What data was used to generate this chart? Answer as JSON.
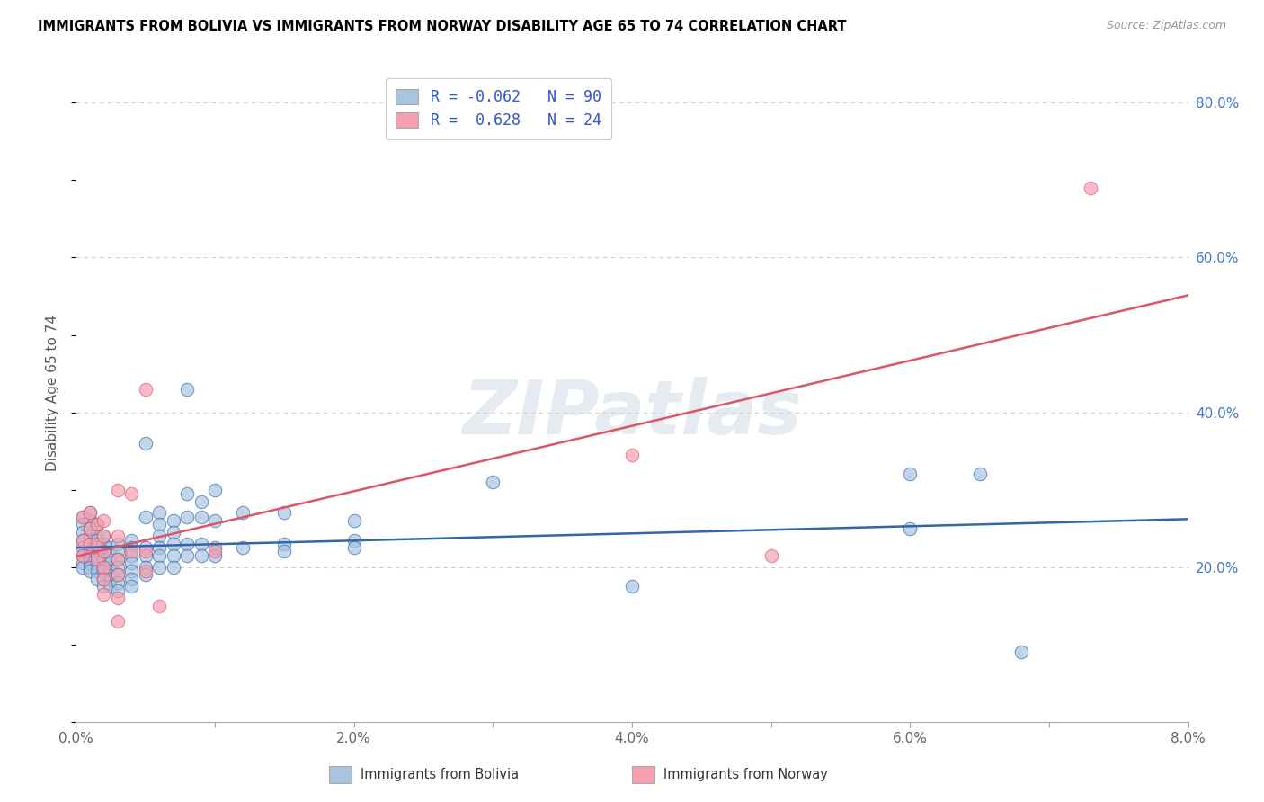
{
  "title": "IMMIGRANTS FROM BOLIVIA VS IMMIGRANTS FROM NORWAY DISABILITY AGE 65 TO 74 CORRELATION CHART",
  "source": "Source: ZipAtlas.com",
  "ylabel": "Disability Age 65 to 74",
  "x_min": 0.0,
  "x_max": 0.08,
  "y_min": 0.0,
  "y_max": 0.85,
  "x_ticks": [
    0.0,
    0.01,
    0.02,
    0.03,
    0.04,
    0.05,
    0.06,
    0.07,
    0.08
  ],
  "x_tick_labels": [
    "0.0%",
    "",
    "2.0%",
    "",
    "4.0%",
    "",
    "6.0%",
    "",
    "8.0%"
  ],
  "y_tick_labels_right": [
    "20.0%",
    "40.0%",
    "60.0%",
    "80.0%"
  ],
  "y_ticks_right": [
    0.2,
    0.4,
    0.6,
    0.8
  ],
  "bolivia_color": "#a8c4e0",
  "norway_color": "#f4a0b0",
  "bolivia_line_color": "#3366aa",
  "norway_line_color": "#dd5566",
  "watermark": "ZIPatlas",
  "bolivia_points": [
    [
      0.0005,
      0.265
    ],
    [
      0.0005,
      0.255
    ],
    [
      0.0005,
      0.245
    ],
    [
      0.0005,
      0.235
    ],
    [
      0.0005,
      0.225
    ],
    [
      0.0005,
      0.215
    ],
    [
      0.0005,
      0.205
    ],
    [
      0.0005,
      0.2
    ],
    [
      0.001,
      0.27
    ],
    [
      0.001,
      0.26
    ],
    [
      0.001,
      0.25
    ],
    [
      0.001,
      0.24
    ],
    [
      0.001,
      0.23
    ],
    [
      0.001,
      0.22
    ],
    [
      0.001,
      0.215
    ],
    [
      0.001,
      0.21
    ],
    [
      0.001,
      0.205
    ],
    [
      0.001,
      0.2
    ],
    [
      0.001,
      0.195
    ],
    [
      0.0015,
      0.255
    ],
    [
      0.0015,
      0.245
    ],
    [
      0.0015,
      0.235
    ],
    [
      0.0015,
      0.225
    ],
    [
      0.0015,
      0.215
    ],
    [
      0.0015,
      0.205
    ],
    [
      0.0015,
      0.195
    ],
    [
      0.0015,
      0.185
    ],
    [
      0.002,
      0.24
    ],
    [
      0.002,
      0.23
    ],
    [
      0.002,
      0.22
    ],
    [
      0.002,
      0.21
    ],
    [
      0.002,
      0.2
    ],
    [
      0.002,
      0.195
    ],
    [
      0.002,
      0.185
    ],
    [
      0.002,
      0.175
    ],
    [
      0.0025,
      0.225
    ],
    [
      0.0025,
      0.215
    ],
    [
      0.0025,
      0.205
    ],
    [
      0.0025,
      0.195
    ],
    [
      0.0025,
      0.185
    ],
    [
      0.0025,
      0.175
    ],
    [
      0.003,
      0.23
    ],
    [
      0.003,
      0.22
    ],
    [
      0.003,
      0.21
    ],
    [
      0.003,
      0.2
    ],
    [
      0.003,
      0.19
    ],
    [
      0.003,
      0.18
    ],
    [
      0.003,
      0.17
    ],
    [
      0.004,
      0.235
    ],
    [
      0.004,
      0.225
    ],
    [
      0.004,
      0.215
    ],
    [
      0.004,
      0.205
    ],
    [
      0.004,
      0.195
    ],
    [
      0.004,
      0.185
    ],
    [
      0.004,
      0.175
    ],
    [
      0.005,
      0.36
    ],
    [
      0.005,
      0.265
    ],
    [
      0.005,
      0.225
    ],
    [
      0.005,
      0.215
    ],
    [
      0.005,
      0.2
    ],
    [
      0.005,
      0.19
    ],
    [
      0.006,
      0.27
    ],
    [
      0.006,
      0.255
    ],
    [
      0.006,
      0.24
    ],
    [
      0.006,
      0.225
    ],
    [
      0.006,
      0.215
    ],
    [
      0.006,
      0.2
    ],
    [
      0.007,
      0.26
    ],
    [
      0.007,
      0.245
    ],
    [
      0.007,
      0.23
    ],
    [
      0.007,
      0.215
    ],
    [
      0.007,
      0.2
    ],
    [
      0.008,
      0.43
    ],
    [
      0.008,
      0.295
    ],
    [
      0.008,
      0.265
    ],
    [
      0.008,
      0.23
    ],
    [
      0.008,
      0.215
    ],
    [
      0.009,
      0.285
    ],
    [
      0.009,
      0.265
    ],
    [
      0.009,
      0.23
    ],
    [
      0.009,
      0.215
    ],
    [
      0.01,
      0.3
    ],
    [
      0.01,
      0.26
    ],
    [
      0.01,
      0.225
    ],
    [
      0.01,
      0.215
    ],
    [
      0.012,
      0.27
    ],
    [
      0.012,
      0.225
    ],
    [
      0.015,
      0.27
    ],
    [
      0.015,
      0.23
    ],
    [
      0.015,
      0.22
    ],
    [
      0.02,
      0.26
    ],
    [
      0.02,
      0.235
    ],
    [
      0.02,
      0.225
    ],
    [
      0.03,
      0.31
    ],
    [
      0.04,
      0.175
    ],
    [
      0.06,
      0.32
    ],
    [
      0.06,
      0.25
    ],
    [
      0.065,
      0.32
    ],
    [
      0.068,
      0.09
    ]
  ],
  "norway_points": [
    [
      0.0005,
      0.265
    ],
    [
      0.0005,
      0.235
    ],
    [
      0.0005,
      0.215
    ],
    [
      0.001,
      0.27
    ],
    [
      0.001,
      0.25
    ],
    [
      0.001,
      0.23
    ],
    [
      0.0015,
      0.255
    ],
    [
      0.0015,
      0.23
    ],
    [
      0.0015,
      0.21
    ],
    [
      0.002,
      0.26
    ],
    [
      0.002,
      0.24
    ],
    [
      0.002,
      0.22
    ],
    [
      0.002,
      0.2
    ],
    [
      0.002,
      0.185
    ],
    [
      0.002,
      0.165
    ],
    [
      0.003,
      0.3
    ],
    [
      0.003,
      0.24
    ],
    [
      0.003,
      0.21
    ],
    [
      0.003,
      0.19
    ],
    [
      0.003,
      0.16
    ],
    [
      0.003,
      0.13
    ],
    [
      0.004,
      0.295
    ],
    [
      0.004,
      0.22
    ],
    [
      0.005,
      0.43
    ],
    [
      0.005,
      0.22
    ],
    [
      0.005,
      0.195
    ],
    [
      0.006,
      0.15
    ],
    [
      0.01,
      0.22
    ],
    [
      0.04,
      0.345
    ],
    [
      0.05,
      0.215
    ],
    [
      0.073,
      0.69
    ]
  ]
}
